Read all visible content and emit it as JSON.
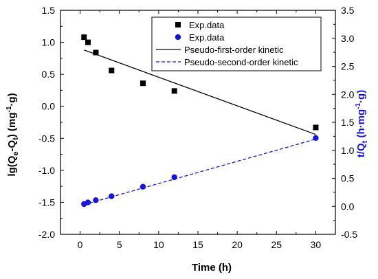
{
  "chart_data": {
    "type": "scatter",
    "title": "",
    "xlabel": "Time (h)",
    "ylabel_left": {
      "base": "lg(Q",
      "sub1": "e",
      "mid": "-Q",
      "sub2": "t",
      "end": ") (mg",
      "sup": "-1",
      "tail": "·g)"
    },
    "ylabel_right": {
      "base": "t/Q",
      "sub": "t",
      "mid": " (h·mg",
      "sup": "-1",
      "tail": "·g)"
    },
    "x_range": [
      -2.5,
      32.5
    ],
    "y_left_range": [
      -2.0,
      1.5
    ],
    "y_right_range": [
      -0.5,
      3.5
    ],
    "x_ticks": [
      0,
      5,
      10,
      15,
      20,
      25,
      30
    ],
    "y_left_ticks": [
      -2.0,
      -1.5,
      -1.0,
      -0.5,
      0.0,
      0.5,
      1.0,
      1.5
    ],
    "y_right_ticks": [
      -0.5,
      0.0,
      0.5,
      1.0,
      1.5,
      2.0,
      2.5,
      3.0,
      3.5
    ],
    "x_tick_labels": [
      "0",
      "5",
      "10",
      "15",
      "20",
      "25",
      "30"
    ],
    "y_left_tick_labels": [
      "-2.0",
      "-1.5",
      "-1.0",
      "-0.5",
      "0.0",
      "0.5",
      "1.0",
      "1.5"
    ],
    "y_right_tick_labels": [
      "-0.5",
      "0.0",
      "0.5",
      "1.0",
      "1.5",
      "2.0",
      "2.5",
      "3.0",
      "3.5"
    ],
    "grid": false,
    "legend_position": "top-right",
    "series": [
      {
        "name": "Exp.data",
        "axis": "left",
        "kind": "points",
        "marker": "square",
        "color": "#000000",
        "x": [
          0.5,
          1,
          2,
          4,
          8,
          12,
          30
        ],
        "y": [
          1.08,
          1.0,
          0.84,
          0.56,
          0.36,
          0.24,
          -0.33
        ]
      },
      {
        "name": "Exp.data",
        "axis": "right",
        "kind": "points",
        "marker": "circle",
        "color": "#1414dc",
        "x": [
          0.5,
          1,
          2,
          4,
          8,
          12,
          30
        ],
        "y": [
          0.04,
          0.07,
          0.11,
          0.18,
          0.35,
          0.52,
          1.22
        ]
      },
      {
        "name": "Pseudo-first-order kinetic",
        "axis": "left",
        "kind": "line",
        "dash": "solid",
        "color": "#000000",
        "x": [
          0.5,
          30
        ],
        "y": [
          0.88,
          -0.44
        ]
      },
      {
        "name": "Pseudo-second-order kinetic",
        "axis": "right",
        "kind": "line",
        "dash": "dashed",
        "color": "#1414dc",
        "x": [
          0.5,
          30
        ],
        "y": [
          0.03,
          1.2
        ]
      }
    ]
  }
}
